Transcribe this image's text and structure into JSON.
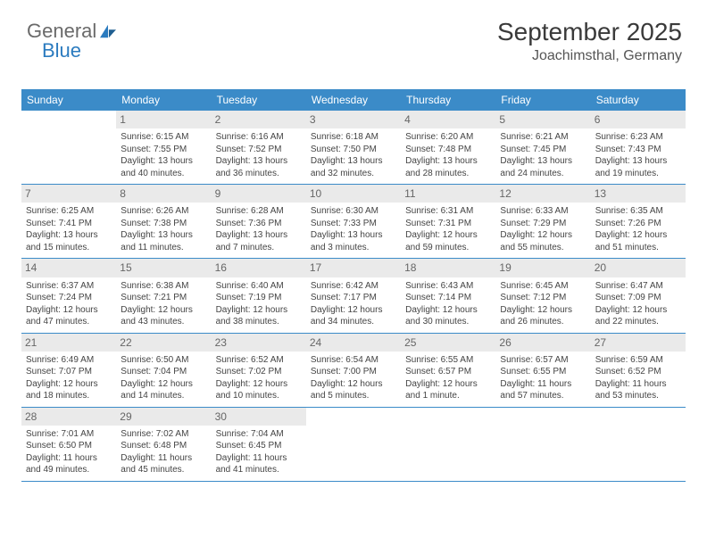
{
  "logo": {
    "text1": "General",
    "text2": "Blue",
    "icon_color": "#2b7bbf",
    "text1_color": "#6a6a6a",
    "text2_color": "#2b7bbf"
  },
  "title": "September 2025",
  "location": "Joachimsthal, Germany",
  "colors": {
    "header_bg": "#3b8bc8",
    "header_text": "#ffffff",
    "daynum_bg": "#eaeaea",
    "daynum_text": "#666666",
    "rule": "#3b8bc8",
    "body_text": "#444444",
    "background": "#ffffff"
  },
  "typography": {
    "title_fontsize": 28,
    "location_fontsize": 16,
    "dow_fontsize": 12,
    "cell_fontsize": 10,
    "daynum_fontsize": 12
  },
  "layout": {
    "columns": 7,
    "rows": 5,
    "start_weekday": 1
  },
  "daysOfWeek": [
    "Sunday",
    "Monday",
    "Tuesday",
    "Wednesday",
    "Thursday",
    "Friday",
    "Saturday"
  ],
  "cells": [
    {
      "day": "",
      "sunrise": "",
      "sunset": "",
      "daylight": ""
    },
    {
      "day": "1",
      "sunrise": "Sunrise: 6:15 AM",
      "sunset": "Sunset: 7:55 PM",
      "daylight": "Daylight: 13 hours and 40 minutes."
    },
    {
      "day": "2",
      "sunrise": "Sunrise: 6:16 AM",
      "sunset": "Sunset: 7:52 PM",
      "daylight": "Daylight: 13 hours and 36 minutes."
    },
    {
      "day": "3",
      "sunrise": "Sunrise: 6:18 AM",
      "sunset": "Sunset: 7:50 PM",
      "daylight": "Daylight: 13 hours and 32 minutes."
    },
    {
      "day": "4",
      "sunrise": "Sunrise: 6:20 AM",
      "sunset": "Sunset: 7:48 PM",
      "daylight": "Daylight: 13 hours and 28 minutes."
    },
    {
      "day": "5",
      "sunrise": "Sunrise: 6:21 AM",
      "sunset": "Sunset: 7:45 PM",
      "daylight": "Daylight: 13 hours and 24 minutes."
    },
    {
      "day": "6",
      "sunrise": "Sunrise: 6:23 AM",
      "sunset": "Sunset: 7:43 PM",
      "daylight": "Daylight: 13 hours and 19 minutes."
    },
    {
      "day": "7",
      "sunrise": "Sunrise: 6:25 AM",
      "sunset": "Sunset: 7:41 PM",
      "daylight": "Daylight: 13 hours and 15 minutes."
    },
    {
      "day": "8",
      "sunrise": "Sunrise: 6:26 AM",
      "sunset": "Sunset: 7:38 PM",
      "daylight": "Daylight: 13 hours and 11 minutes."
    },
    {
      "day": "9",
      "sunrise": "Sunrise: 6:28 AM",
      "sunset": "Sunset: 7:36 PM",
      "daylight": "Daylight: 13 hours and 7 minutes."
    },
    {
      "day": "10",
      "sunrise": "Sunrise: 6:30 AM",
      "sunset": "Sunset: 7:33 PM",
      "daylight": "Daylight: 13 hours and 3 minutes."
    },
    {
      "day": "11",
      "sunrise": "Sunrise: 6:31 AM",
      "sunset": "Sunset: 7:31 PM",
      "daylight": "Daylight: 12 hours and 59 minutes."
    },
    {
      "day": "12",
      "sunrise": "Sunrise: 6:33 AM",
      "sunset": "Sunset: 7:29 PM",
      "daylight": "Daylight: 12 hours and 55 minutes."
    },
    {
      "day": "13",
      "sunrise": "Sunrise: 6:35 AM",
      "sunset": "Sunset: 7:26 PM",
      "daylight": "Daylight: 12 hours and 51 minutes."
    },
    {
      "day": "14",
      "sunrise": "Sunrise: 6:37 AM",
      "sunset": "Sunset: 7:24 PM",
      "daylight": "Daylight: 12 hours and 47 minutes."
    },
    {
      "day": "15",
      "sunrise": "Sunrise: 6:38 AM",
      "sunset": "Sunset: 7:21 PM",
      "daylight": "Daylight: 12 hours and 43 minutes."
    },
    {
      "day": "16",
      "sunrise": "Sunrise: 6:40 AM",
      "sunset": "Sunset: 7:19 PM",
      "daylight": "Daylight: 12 hours and 38 minutes."
    },
    {
      "day": "17",
      "sunrise": "Sunrise: 6:42 AM",
      "sunset": "Sunset: 7:17 PM",
      "daylight": "Daylight: 12 hours and 34 minutes."
    },
    {
      "day": "18",
      "sunrise": "Sunrise: 6:43 AM",
      "sunset": "Sunset: 7:14 PM",
      "daylight": "Daylight: 12 hours and 30 minutes."
    },
    {
      "day": "19",
      "sunrise": "Sunrise: 6:45 AM",
      "sunset": "Sunset: 7:12 PM",
      "daylight": "Daylight: 12 hours and 26 minutes."
    },
    {
      "day": "20",
      "sunrise": "Sunrise: 6:47 AM",
      "sunset": "Sunset: 7:09 PM",
      "daylight": "Daylight: 12 hours and 22 minutes."
    },
    {
      "day": "21",
      "sunrise": "Sunrise: 6:49 AM",
      "sunset": "Sunset: 7:07 PM",
      "daylight": "Daylight: 12 hours and 18 minutes."
    },
    {
      "day": "22",
      "sunrise": "Sunrise: 6:50 AM",
      "sunset": "Sunset: 7:04 PM",
      "daylight": "Daylight: 12 hours and 14 minutes."
    },
    {
      "day": "23",
      "sunrise": "Sunrise: 6:52 AM",
      "sunset": "Sunset: 7:02 PM",
      "daylight": "Daylight: 12 hours and 10 minutes."
    },
    {
      "day": "24",
      "sunrise": "Sunrise: 6:54 AM",
      "sunset": "Sunset: 7:00 PM",
      "daylight": "Daylight: 12 hours and 5 minutes."
    },
    {
      "day": "25",
      "sunrise": "Sunrise: 6:55 AM",
      "sunset": "Sunset: 6:57 PM",
      "daylight": "Daylight: 12 hours and 1 minute."
    },
    {
      "day": "26",
      "sunrise": "Sunrise: 6:57 AM",
      "sunset": "Sunset: 6:55 PM",
      "daylight": "Daylight: 11 hours and 57 minutes."
    },
    {
      "day": "27",
      "sunrise": "Sunrise: 6:59 AM",
      "sunset": "Sunset: 6:52 PM",
      "daylight": "Daylight: 11 hours and 53 minutes."
    },
    {
      "day": "28",
      "sunrise": "Sunrise: 7:01 AM",
      "sunset": "Sunset: 6:50 PM",
      "daylight": "Daylight: 11 hours and 49 minutes."
    },
    {
      "day": "29",
      "sunrise": "Sunrise: 7:02 AM",
      "sunset": "Sunset: 6:48 PM",
      "daylight": "Daylight: 11 hours and 45 minutes."
    },
    {
      "day": "30",
      "sunrise": "Sunrise: 7:04 AM",
      "sunset": "Sunset: 6:45 PM",
      "daylight": "Daylight: 11 hours and 41 minutes."
    },
    {
      "day": "",
      "sunrise": "",
      "sunset": "",
      "daylight": ""
    },
    {
      "day": "",
      "sunrise": "",
      "sunset": "",
      "daylight": ""
    },
    {
      "day": "",
      "sunrise": "",
      "sunset": "",
      "daylight": ""
    },
    {
      "day": "",
      "sunrise": "",
      "sunset": "",
      "daylight": ""
    }
  ]
}
